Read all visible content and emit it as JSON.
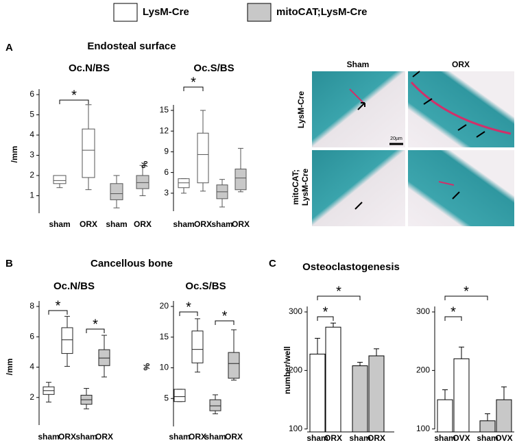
{
  "legend": [
    {
      "label": "LysM-Cre",
      "color": "#ffffff"
    },
    {
      "label": "mitoCAT;LysM-Cre",
      "color": "#c8c8c8"
    }
  ],
  "panel_labels": [
    "A",
    "B",
    "C"
  ],
  "section_titles": [
    "Endosteal surface",
    "Cancellous bone",
    "Osteoclastogenesis"
  ],
  "micrograph": {
    "columns": [
      "Sham",
      "ORX"
    ],
    "rows": [
      [
        "LysM-Cre"
      ],
      [
        "mitoCAT;",
        "LysM-Cre"
      ]
    ],
    "scale_bar": "20µm"
  },
  "chart_data": [
    {
      "type": "box",
      "title": "Oc.N/BS",
      "ylabel": "/mm",
      "categories": [
        "sham",
        "ORX",
        "sham",
        "ORX"
      ],
      "values": [
        [
          1.4,
          1.6,
          1.75,
          2.0,
          2.0
        ],
        [
          1.3,
          1.9,
          3.25,
          4.3,
          5.5
        ],
        [
          0.4,
          0.8,
          1.1,
          1.6,
          2.0
        ],
        [
          1.0,
          1.35,
          1.65,
          2.0,
          2.5
        ]
      ],
      "colors": [
        "#ffffff",
        "#ffffff",
        "#c8c8c8",
        "#c8c8c8"
      ],
      "ylim": [
        0,
        6
      ],
      "yticks": [
        1,
        2,
        3,
        4,
        5,
        6
      ],
      "significance": [
        {
          "groups": [
            0,
            1
          ],
          "label": "*"
        }
      ]
    },
    {
      "type": "box",
      "title": "Oc.S/BS",
      "ylabel": "%",
      "categories": [
        "sham",
        "ORX",
        "sham",
        "ORX"
      ],
      "values": [
        [
          3.0,
          3.8,
          4.5,
          5.1,
          5.1
        ],
        [
          3.3,
          4.5,
          8.6,
          11.7,
          15.0
        ],
        [
          1.0,
          2.2,
          3.2,
          4.2,
          5.0
        ],
        [
          3.2,
          3.5,
          5.2,
          6.5,
          9.5
        ]
      ],
      "colors": [
        "#ffffff",
        "#ffffff",
        "#c8c8c8",
        "#c8c8c8"
      ],
      "ylim": [
        0,
        15
      ],
      "yticks": [
        3,
        6,
        9,
        12,
        15
      ],
      "significance": [
        {
          "groups": [
            0,
            1
          ],
          "label": "*"
        }
      ]
    },
    {
      "type": "box",
      "title": "Oc.N/BS",
      "ylabel": "/mm",
      "categories": [
        "sham",
        "ORX",
        "sham",
        "ORX"
      ],
      "values": [
        [
          1.7,
          2.2,
          2.45,
          2.7,
          3.0
        ],
        [
          4.05,
          4.9,
          5.8,
          6.6,
          7.35
        ],
        [
          1.25,
          1.55,
          1.85,
          2.15,
          2.6
        ],
        [
          3.35,
          4.1,
          4.6,
          5.15,
          6.1
        ]
      ],
      "colors": [
        "#ffffff",
        "#ffffff",
        "#c8c8c8",
        "#c8c8c8"
      ],
      "ylim": [
        0,
        8
      ],
      "yticks": [
        2,
        4,
        6,
        8
      ],
      "significance": [
        {
          "groups": [
            0,
            1
          ],
          "label": "*"
        },
        {
          "groups": [
            2,
            3
          ],
          "label": "*"
        }
      ]
    },
    {
      "type": "box",
      "title": "Oc.S/BS",
      "ylabel": "%",
      "categories": [
        "sham",
        "ORX",
        "sham",
        "ORX"
      ],
      "values": [
        [
          4.5,
          4.5,
          5.3,
          6.5,
          6.5
        ],
        [
          9.3,
          10.8,
          13.0,
          16.0,
          18.0
        ],
        [
          2.5,
          3.0,
          3.8,
          4.8,
          5.6
        ],
        [
          8.0,
          8.3,
          10.7,
          12.5,
          16.2
        ]
      ],
      "colors": [
        "#ffffff",
        "#ffffff",
        "#c8c8c8",
        "#c8c8c8"
      ],
      "ylim": [
        0,
        20
      ],
      "yticks": [
        5,
        10,
        15,
        20
      ],
      "significance": [
        {
          "groups": [
            0,
            1
          ],
          "label": "*"
        },
        {
          "groups": [
            2,
            3
          ],
          "label": "*"
        }
      ]
    },
    {
      "type": "bar",
      "ylabel": "number/well",
      "categories": [
        "sham",
        "ORX",
        "sham",
        "ORX"
      ],
      "values": [
        228,
        274,
        208,
        225
      ],
      "errors": [
        27,
        7,
        6,
        12
      ],
      "colors": [
        "#ffffff",
        "#ffffff",
        "#c8c8c8",
        "#c8c8c8"
      ],
      "ylim": [
        95,
        300
      ],
      "yticks": [
        100,
        200,
        300
      ],
      "significance": [
        {
          "groups": [
            0,
            1
          ],
          "label": "*"
        },
        {
          "groups": [
            0,
            2
          ],
          "label": "*"
        }
      ]
    },
    {
      "type": "bar",
      "categories": [
        "sham",
        "OVX",
        "sham",
        "OVX"
      ],
      "values": [
        150,
        220,
        114,
        150
      ],
      "errors": [
        17,
        20,
        12,
        22
      ],
      "colors": [
        "#ffffff",
        "#ffffff",
        "#c8c8c8",
        "#c8c8c8"
      ],
      "ylim": [
        95,
        300
      ],
      "yticks": [
        100,
        200,
        300
      ],
      "significance": [
        {
          "groups": [
            0,
            1
          ],
          "label": "*"
        },
        {
          "groups": [
            0,
            2
          ],
          "label": "*"
        }
      ]
    }
  ]
}
